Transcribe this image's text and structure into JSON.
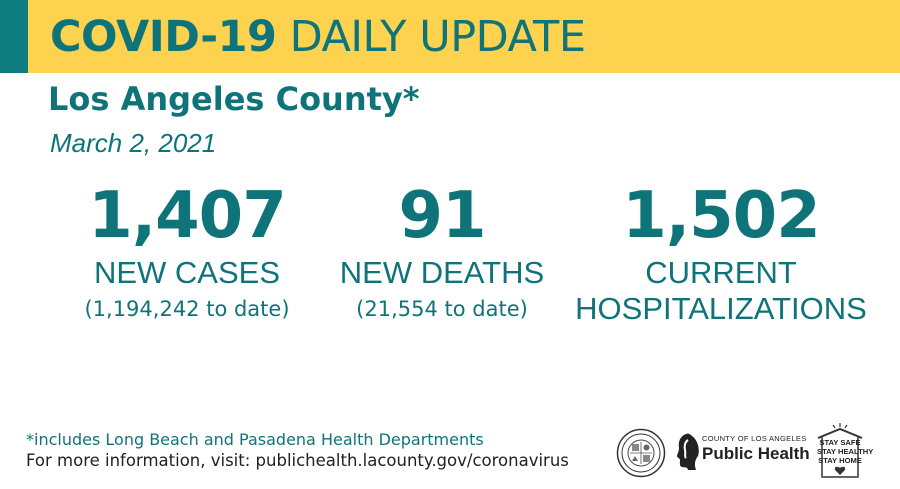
{
  "banner": {
    "title_bold": "COVID-19",
    "title_rest": " DAILY UPDATE"
  },
  "header": {
    "county": "Los Angeles County*",
    "date": "March 2, 2021"
  },
  "stats": {
    "cases": {
      "value": "1,407",
      "label": "NEW CASES",
      "sub": "(1,194,242 to date)"
    },
    "deaths": {
      "value": "91",
      "label": "NEW DEATHS",
      "sub": "(21,554 to date)"
    },
    "hospitalizations": {
      "value": "1,502",
      "label_line1": "CURRENT",
      "label_line2": "HOSPITALIZATIONS"
    }
  },
  "footer": {
    "footnote": "*includes Long Beach and Pasadena Health Departments",
    "more_info": "For more information, visit: publichealth.lacounty.gov/coronavirus"
  },
  "logos": {
    "public_health_top": "COUNTY OF LOS ANGELES",
    "public_health_main": "Public Health",
    "stay_line1": "STAY SAFE",
    "stay_line2": "STAY HEALTHY",
    "stay_line3": "STAY HOME"
  },
  "colors": {
    "banner": "#fdd24e",
    "accent": "#0f7c80",
    "text_teal": "#0f7479"
  }
}
